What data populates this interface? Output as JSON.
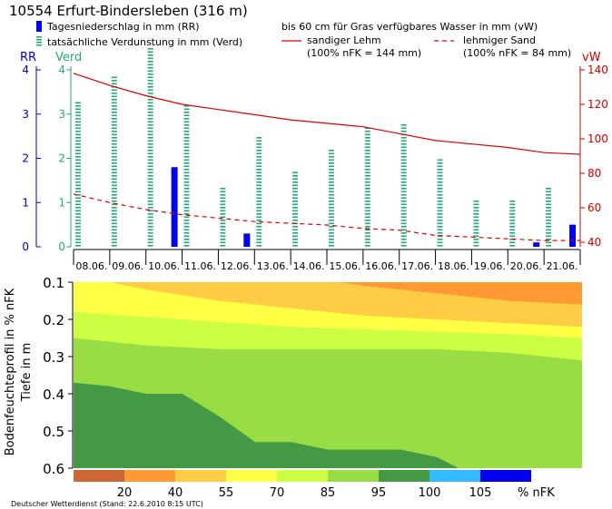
{
  "header": {
    "station": "10554 Erfurt-Bindersleben (316 m)",
    "legend_rr": "Tagesniederschlag in mm (RR)",
    "legend_verd": "tatsächliche Verdunstung in mm (Verd)",
    "legend_vw_title": "bis 60 cm für Gras verfügbares Wasser in mm (vW)",
    "legend_lehm": "sandiger Lehm",
    "legend_lehm_note": "(100% nFK = 144 mm)",
    "legend_sand": "lehmiger Sand",
    "legend_sand_note": "(100% nFK = 84 mm)"
  },
  "colors": {
    "rr": "#0000ee",
    "verd": "#22aa77",
    "vw": "#dd0000",
    "left_axis": "#0000cc",
    "right_axis": "#cc0000"
  },
  "chart_data": [
    {
      "type": "bar",
      "categories": [
        "08.06.",
        "09.06.",
        "10.06.",
        "11.06.",
        "12.06.",
        "13.06.",
        "14.06.",
        "15.06.",
        "16.06.",
        "17.06.",
        "18.06.",
        "19.06.",
        "20.06.",
        "21.06."
      ],
      "y_left_label_rr": "RR",
      "y_left_label_verd": "Verd",
      "y_right_label": "vW",
      "ylim_left": [
        0,
        4
      ],
      "ylim_right": [
        40,
        140
      ],
      "left_ticks": [
        "0",
        "1",
        "2",
        "3",
        "4"
      ],
      "right_ticks": [
        "40",
        "60",
        "80",
        "100",
        "120",
        "140"
      ],
      "series": [
        {
          "name": "Tagesniederschlag in mm (RR)",
          "kind": "bar-solid",
          "values": [
            0,
            0,
            1.8,
            0,
            0.3,
            0,
            0,
            0,
            0,
            0,
            0,
            0,
            0.1,
            0.5
          ]
        },
        {
          "name": "tatsächliche Verdunstung in mm (Verd)",
          "kind": "bar-striped",
          "values": [
            3.3,
            3.9,
            4.5,
            3.2,
            1.4,
            2.5,
            1.7,
            2.2,
            2.7,
            2.8,
            2.0,
            1.1,
            1.1,
            1.4
          ]
        },
        {
          "name": "sandiger Lehm",
          "kind": "line-solid",
          "axis": "right",
          "x": [
            0,
            1,
            2,
            3,
            4,
            5,
            6,
            7,
            8,
            9,
            10,
            11,
            12,
            13,
            14
          ],
          "values": [
            138,
            131,
            125,
            120,
            117,
            114,
            111,
            109,
            107,
            103,
            99,
            97,
            95,
            92,
            91
          ]
        },
        {
          "name": "lehmiger Sand",
          "kind": "line-dashed",
          "axis": "right",
          "x": [
            0,
            1,
            2,
            3,
            4,
            5,
            6,
            7,
            8,
            9,
            10,
            11,
            12,
            13,
            14
          ],
          "values": [
            68,
            63,
            59,
            56,
            54,
            52,
            51,
            50,
            48,
            47,
            44,
            43,
            42,
            41,
            41
          ]
        }
      ]
    },
    {
      "type": "heatmap",
      "ylabel_1": "Bodenfeuchteprofil in % nFK",
      "ylabel_2": "Tiefe in m",
      "y_ticks": [
        "0.1",
        "0.2",
        "0.3",
        "0.4",
        "0.5",
        "0.6"
      ],
      "ylim": [
        0.1,
        0.6
      ],
      "x_days": [
        0,
        14
      ],
      "colorbar": {
        "colors": [
          "#cc6633",
          "#ff9933",
          "#ffcc44",
          "#ffff44",
          "#ccff44",
          "#99dd44",
          "#449944",
          "#33bbff",
          "#0000ee"
        ],
        "labels": [
          "20",
          "40",
          "55",
          "70",
          "85",
          "95",
          "100",
          "105"
        ],
        "unit": "% nFK"
      },
      "boundaries": [
        {
          "above": "#cc6633",
          "below": "#ff9933",
          "points": [
            [
              0,
              0.05
            ],
            [
              5,
              0.05
            ],
            [
              7,
              0.05
            ],
            [
              9,
              0.06
            ],
            [
              11,
              0.08
            ],
            [
              13,
              0.1
            ],
            [
              14,
              0.1
            ]
          ]
        },
        {
          "above": "#ff9933",
          "below": "#ffcc44",
          "points": [
            [
              0,
              0.05
            ],
            [
              4,
              0.05
            ],
            [
              6,
              0.08
            ],
            [
              8,
              0.11
            ],
            [
              10,
              0.13
            ],
            [
              12,
              0.15
            ],
            [
              14,
              0.16
            ]
          ]
        },
        {
          "above": "#ffcc44",
          "below": "#ffff44",
          "points": [
            [
              0,
              0.08
            ],
            [
              2,
              0.12
            ],
            [
              4,
              0.15
            ],
            [
              6,
              0.17
            ],
            [
              8,
              0.19
            ],
            [
              10,
              0.2
            ],
            [
              12,
              0.21
            ],
            [
              14,
              0.22
            ]
          ]
        },
        {
          "above": "#ffff44",
          "below": "#ccff44",
          "points": [
            [
              0,
              0.18
            ],
            [
              3,
              0.2
            ],
            [
              6,
              0.22
            ],
            [
              9,
              0.23
            ],
            [
              12,
              0.24
            ],
            [
              14,
              0.25
            ]
          ]
        },
        {
          "above": "#ccff44",
          "below": "#99dd44",
          "points": [
            [
              0,
              0.25
            ],
            [
              2,
              0.27
            ],
            [
              4,
              0.28
            ],
            [
              7,
              0.28
            ],
            [
              10,
              0.28
            ],
            [
              12,
              0.29
            ],
            [
              14,
              0.31
            ]
          ]
        },
        {
          "above": "#99dd44",
          "below": "#449944",
          "points": [
            [
              0,
              0.37
            ],
            [
              1,
              0.38
            ],
            [
              2,
              0.4
            ],
            [
              3,
              0.4
            ],
            [
              4,
              0.46
            ],
            [
              5,
              0.53
            ],
            [
              6,
              0.53
            ],
            [
              7,
              0.55
            ],
            [
              8,
              0.55
            ],
            [
              9,
              0.55
            ],
            [
              10,
              0.57
            ],
            [
              10.6,
              0.6
            ]
          ]
        }
      ]
    }
  ],
  "footer": "Deutscher Wetterdienst (Stand: 22.6.2010 8:15 UTC)"
}
